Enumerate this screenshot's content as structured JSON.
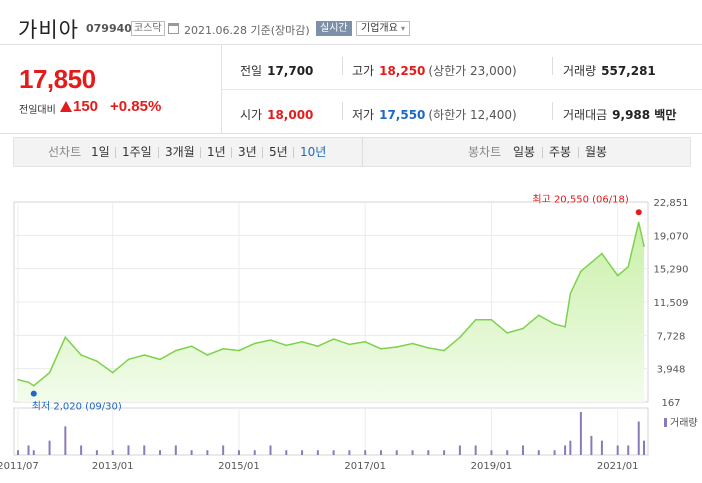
{
  "header": {
    "name": "가비아",
    "code": "079940",
    "market": "코스닥",
    "date": "2021.06.28 기준(장마감)",
    "live_label": "실시간",
    "overview_label": "기업개요"
  },
  "summary": {
    "price": "17,850",
    "change_label": "전일대비",
    "change_value": "150",
    "change_pct": "+0.85%",
    "prev_label": "전일",
    "prev_value": "17,700",
    "high_label": "고가",
    "high_value": "18,250",
    "upper_limit": "(상한가 23,000)",
    "volume_label": "거래량",
    "volume_value": "557,281",
    "open_label": "시가",
    "open_value": "18,000",
    "low_label": "저가",
    "low_value": "17,550",
    "lower_limit": "(하한가 12,400)",
    "amount_label": "거래대금",
    "amount_value": "9,988 백만"
  },
  "period_bar": {
    "line_label": "선차트",
    "periods": [
      "1일",
      "1주일",
      "3개월",
      "1년",
      "3년",
      "5년",
      "10년"
    ],
    "active_period": "10년",
    "candle_label": "봉차트",
    "candles": [
      "일봉",
      "주봉",
      "월봉"
    ]
  },
  "colors": {
    "up": "#e41b1b",
    "down": "#1d68c8",
    "line": "#7ed24b",
    "fill_top": "#c9f0a8",
    "fill_bottom": "#f3fcec",
    "volume": "#8c7ab8"
  },
  "chart_data": {
    "type": "area",
    "y_ticks": [
      "22,851",
      "19,070",
      "15,290",
      "11,509",
      "7,728",
      "3,948",
      "167"
    ],
    "ylim": [
      167,
      22851
    ],
    "x_ticks": [
      "2011/07",
      "2013/01",
      "2015/01",
      "2017/01",
      "2019/01",
      "2021/01"
    ],
    "max_label": "최고 20,550 (06/18)",
    "min_label": "최저 2,020 (09/30)",
    "volume_legend": "거래량",
    "x": [
      "2011/07",
      "2011/09",
      "2011/10",
      "2012/01",
      "2012/04",
      "2012/07",
      "2012/10",
      "2013/01",
      "2013/04",
      "2013/07",
      "2013/10",
      "2014/01",
      "2014/04",
      "2014/07",
      "2014/10",
      "2015/01",
      "2015/04",
      "2015/07",
      "2015/10",
      "2016/01",
      "2016/04",
      "2016/07",
      "2016/10",
      "2017/01",
      "2017/04",
      "2017/07",
      "2017/10",
      "2018/01",
      "2018/04",
      "2018/07",
      "2018/10",
      "2019/01",
      "2019/04",
      "2019/07",
      "2019/10",
      "2020/01",
      "2020/03",
      "2020/04",
      "2020/06",
      "2020/08",
      "2020/10",
      "2021/01",
      "2021/03",
      "2021/05",
      "2021/06"
    ],
    "values": [
      2700,
      2400,
      2020,
      3500,
      7500,
      5500,
      4800,
      3500,
      5000,
      5500,
      5000,
      6000,
      6500,
      5500,
      6200,
      6000,
      6800,
      7200,
      6600,
      7000,
      6500,
      7300,
      6700,
      7000,
      6200,
      6400,
      6800,
      6300,
      6000,
      7500,
      9500,
      9500,
      8000,
      8500,
      10000,
      9000,
      8700,
      12500,
      15000,
      16000,
      17000,
      14500,
      15500,
      20550,
      17850
    ],
    "volume": [
      1,
      2,
      1,
      3,
      6,
      2,
      1,
      1,
      2,
      2,
      1,
      2,
      1,
      1,
      2,
      1,
      1,
      2,
      1,
      1,
      1,
      1,
      1,
      1,
      1,
      1,
      1,
      1,
      1,
      2,
      2,
      1,
      1,
      2,
      1,
      1,
      2,
      3,
      9,
      4,
      3,
      2,
      2,
      7,
      3
    ]
  }
}
